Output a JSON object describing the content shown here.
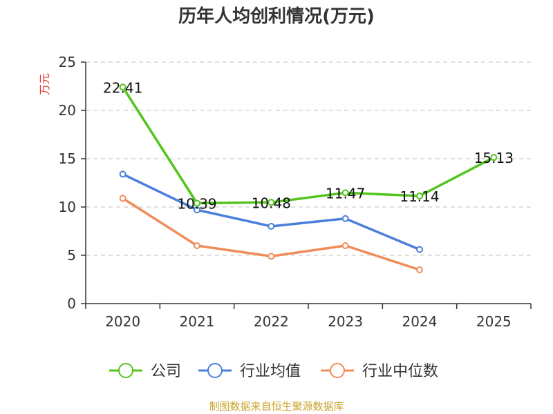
{
  "chart_data": {
    "type": "line",
    "title": "历年人均创利情况(万元)",
    "ylabel": "万元",
    "xlabel": "",
    "categories": [
      "2020",
      "2021",
      "2022",
      "2023",
      "2024",
      "2025"
    ],
    "ylim": [
      0,
      25
    ],
    "yticks": [
      0,
      5,
      10,
      15,
      20,
      25
    ],
    "grid": true,
    "legend_position": "bottom",
    "series": [
      {
        "name": "公司",
        "color": "#52c41a",
        "values": [
          22.41,
          10.39,
          10.48,
          11.47,
          11.14,
          15.13
        ],
        "labels": [
          "22.41",
          "10.39",
          "10.48",
          "11.47",
          "11.14",
          "15.13"
        ]
      },
      {
        "name": "行业均值",
        "color": "#4a7fdb",
        "values": [
          13.4,
          9.7,
          8.0,
          8.8,
          5.6,
          null
        ]
      },
      {
        "name": "行业中位数",
        "color": "#f08c5a",
        "values": [
          10.9,
          6.0,
          4.9,
          6.0,
          3.5,
          null
        ]
      }
    ]
  },
  "footer": {
    "source": "制图数据来自恒生聚源数据库"
  }
}
